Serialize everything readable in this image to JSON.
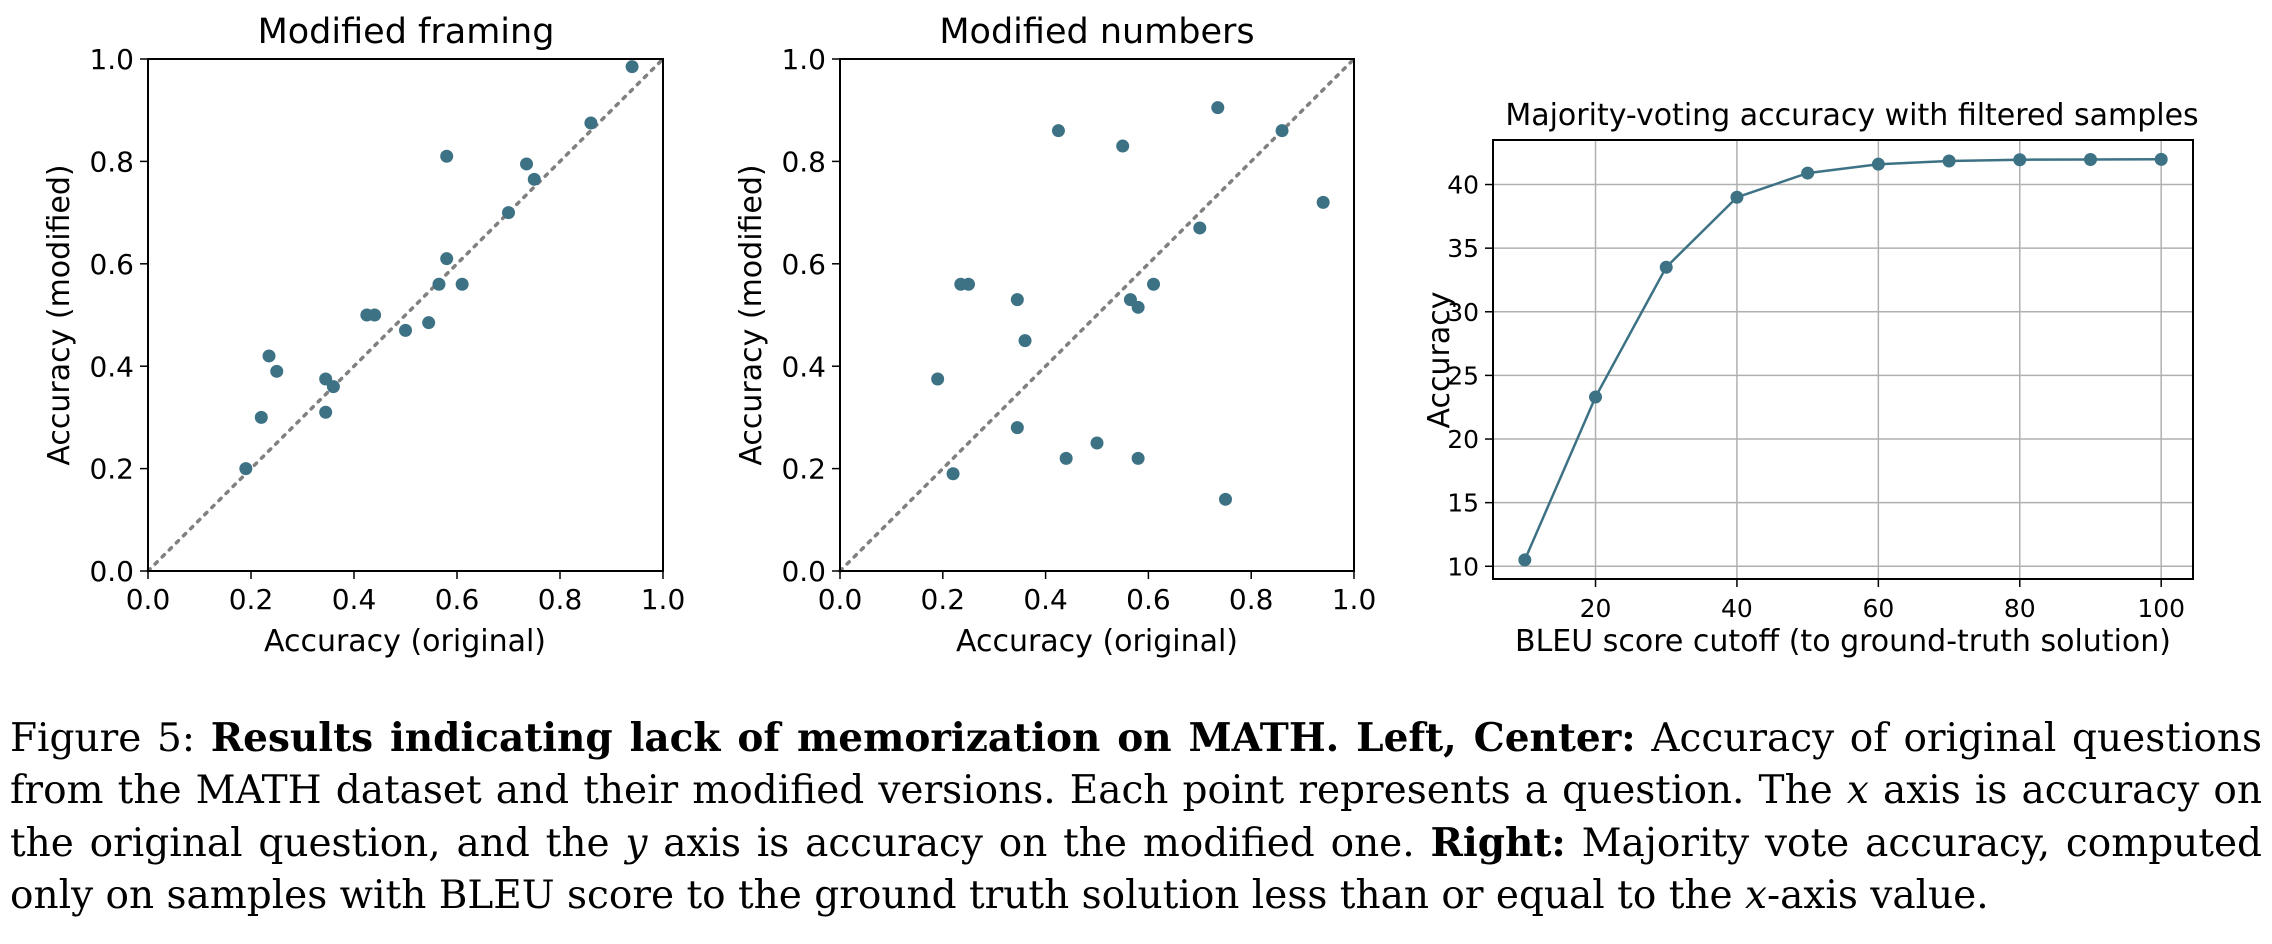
{
  "chart_data": [
    {
      "type": "scatter",
      "title": "Modified framing",
      "xlabel": "Accuracy (original)",
      "ylabel": "Accuracy (modified)",
      "xlim": [
        0,
        1
      ],
      "ylim": [
        0,
        1
      ],
      "xticks": [
        "0.0",
        "0.2",
        "0.4",
        "0.6",
        "0.8",
        "1.0"
      ],
      "yticks": [
        "0.0",
        "0.2",
        "0.4",
        "0.6",
        "0.8",
        "1.0"
      ],
      "grid": false,
      "diagonal": "dotted y = x reference line",
      "color": "#3d7285",
      "points": [
        {
          "x": 0.19,
          "y": 0.2
        },
        {
          "x": 0.22,
          "y": 0.3
        },
        {
          "x": 0.235,
          "y": 0.42
        },
        {
          "x": 0.25,
          "y": 0.39
        },
        {
          "x": 0.345,
          "y": 0.375
        },
        {
          "x": 0.345,
          "y": 0.31
        },
        {
          "x": 0.36,
          "y": 0.36
        },
        {
          "x": 0.425,
          "y": 0.5
        },
        {
          "x": 0.44,
          "y": 0.5
        },
        {
          "x": 0.5,
          "y": 0.47
        },
        {
          "x": 0.545,
          "y": 0.485
        },
        {
          "x": 0.565,
          "y": 0.56
        },
        {
          "x": 0.58,
          "y": 0.61
        },
        {
          "x": 0.58,
          "y": 0.81
        },
        {
          "x": 0.61,
          "y": 0.56
        },
        {
          "x": 0.7,
          "y": 0.7
        },
        {
          "x": 0.735,
          "y": 0.795
        },
        {
          "x": 0.75,
          "y": 0.765
        },
        {
          "x": 0.86,
          "y": 0.875
        },
        {
          "x": 0.94,
          "y": 0.985
        }
      ]
    },
    {
      "type": "scatter",
      "title": "Modified numbers",
      "xlabel": "Accuracy (original)",
      "ylabel": "Accuracy (modified)",
      "xlim": [
        0,
        1
      ],
      "ylim": [
        0,
        1
      ],
      "xticks": [
        "0.0",
        "0.2",
        "0.4",
        "0.6",
        "0.8",
        "1.0"
      ],
      "yticks": [
        "0.0",
        "0.2",
        "0.4",
        "0.6",
        "0.8",
        "1.0"
      ],
      "grid": false,
      "diagonal": "dotted y = x reference line",
      "color": "#3d7285",
      "points": [
        {
          "x": 0.19,
          "y": 0.375
        },
        {
          "x": 0.22,
          "y": 0.19
        },
        {
          "x": 0.235,
          "y": 0.56
        },
        {
          "x": 0.25,
          "y": 0.56
        },
        {
          "x": 0.345,
          "y": 0.53
        },
        {
          "x": 0.345,
          "y": 0.28
        },
        {
          "x": 0.36,
          "y": 0.45
        },
        {
          "x": 0.425,
          "y": 0.86
        },
        {
          "x": 0.44,
          "y": 0.22
        },
        {
          "x": 0.5,
          "y": 0.25
        },
        {
          "x": 0.55,
          "y": 0.83
        },
        {
          "x": 0.565,
          "y": 0.53
        },
        {
          "x": 0.58,
          "y": 0.515
        },
        {
          "x": 0.58,
          "y": 0.22
        },
        {
          "x": 0.61,
          "y": 0.56
        },
        {
          "x": 0.7,
          "y": 0.67
        },
        {
          "x": 0.735,
          "y": 0.905
        },
        {
          "x": 0.75,
          "y": 0.14
        },
        {
          "x": 0.86,
          "y": 0.86
        },
        {
          "x": 0.94,
          "y": 0.72
        }
      ]
    },
    {
      "type": "line",
      "title": "Majority-voting accuracy with filtered samples",
      "xlabel": "BLEU score cutoff (to ground-truth solution)",
      "ylabel": "Accuracy",
      "xlim": [
        5.5,
        104.5
      ],
      "ylim": [
        9,
        43.5
      ],
      "xticks": [
        20,
        40,
        60,
        80,
        100
      ],
      "yticks": [
        10,
        15,
        20,
        25,
        30,
        35,
        40
      ],
      "grid": true,
      "color": "#3d7285",
      "x": [
        10,
        20,
        30,
        40,
        50,
        60,
        70,
        80,
        90,
        100
      ],
      "y": [
        10.5,
        23.3,
        33.5,
        39.0,
        40.9,
        41.6,
        41.85,
        41.95,
        41.97,
        41.98
      ]
    }
  ],
  "caption": {
    "figure_label": "Figure 5:",
    "bold_title": "Results indicating lack of memorization on MATH. Left, Center:",
    "text_1": "Accuracy of original questions from the MATH dataset and their modified versions. Each point represents a question. The",
    "x_var": "x",
    "text_2": "axis is accuracy on the original question, and the",
    "y_var": "y",
    "text_3": "axis is accuracy on the modified one.",
    "bold_right": "Right:",
    "text_4": "Majority vote accuracy, computed only on samples with BLEU score to the ground truth solution less than or equal to the",
    "x_var_2": "x",
    "text_5": "-axis value."
  }
}
